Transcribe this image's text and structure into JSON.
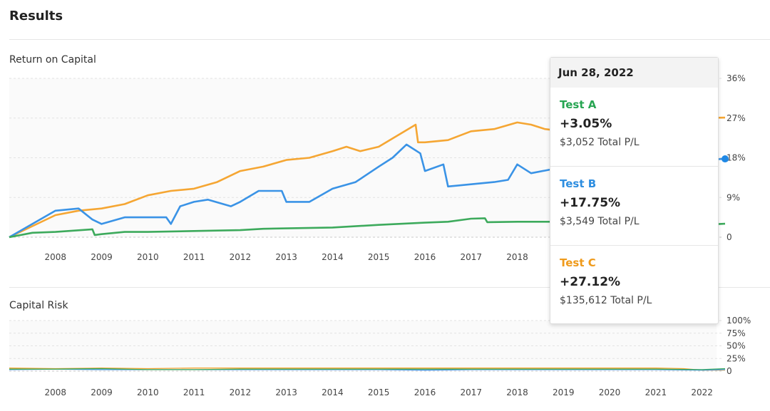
{
  "header": {
    "title": "Results"
  },
  "sections": {
    "roc": "Return on Capital",
    "risk": "Capital Risk"
  },
  "colors": {
    "Test A": "#3daa5c",
    "Test B": "#3a93e6",
    "Test C": "#f5a633"
  },
  "tooltip": {
    "date": "Jun 28, 2022",
    "items": [
      {
        "name": "Test A",
        "pct": "+3.05%",
        "pl": "$3,052 Total P/L",
        "color": "#27a552"
      },
      {
        "name": "Test B",
        "pct": "+17.75%",
        "pl": "$3,549 Total P/L",
        "color": "#2e8ee0"
      },
      {
        "name": "Test C",
        "pct": "+27.12%",
        "pl": "$135,612 Total P/L",
        "color": "#ef9a1a"
      }
    ]
  },
  "chart_data": [
    {
      "type": "line",
      "title": "Return on Capital",
      "xlim": [
        2007,
        2022.5
      ],
      "ylim": [
        0,
        36
      ],
      "yticks": [
        "0",
        "9%",
        "18%",
        "27%",
        "36%"
      ],
      "ytick_values": [
        0,
        9,
        18,
        27,
        36
      ],
      "xticks": [
        "2008",
        "2009",
        "2010",
        "2011",
        "2012",
        "2013",
        "2014",
        "2015",
        "2016",
        "2017",
        "2018",
        "2019",
        "2020",
        "2021",
        "2022"
      ],
      "series": [
        {
          "name": "Test C",
          "x": [
            2007,
            2007.5,
            2008,
            2008.5,
            2009,
            2009.5,
            2010,
            2010.5,
            2011,
            2011.5,
            2012,
            2012.5,
            2013,
            2013.5,
            2014,
            2014.3,
            2014.6,
            2015,
            2015.4,
            2015.8,
            2015.85,
            2016,
            2016.5,
            2017,
            2017.5,
            2018,
            2018.3,
            2018.6,
            2019,
            2019.5,
            2020,
            2020.5,
            2021,
            2021.5,
            2022,
            2022.5
          ],
          "y": [
            0,
            2.5,
            5,
            6,
            6.5,
            7.5,
            9.5,
            10.5,
            11,
            12.5,
            15,
            16,
            17.5,
            18,
            19.5,
            20.5,
            19.5,
            20.5,
            23,
            25.5,
            21.5,
            21.5,
            22,
            24,
            24.5,
            26,
            25.5,
            24.5,
            24,
            24.5,
            25,
            25.5,
            26,
            26.5,
            27,
            27.1
          ]
        },
        {
          "name": "Test B",
          "x": [
            2007,
            2007.5,
            2008,
            2008.5,
            2008.8,
            2009,
            2009.5,
            2010,
            2010.4,
            2010.5,
            2010.7,
            2011,
            2011.3,
            2011.8,
            2012,
            2012.4,
            2012.9,
            2013,
            2013.5,
            2014,
            2014.5,
            2015,
            2015.3,
            2015.6,
            2015.9,
            2016,
            2016.4,
            2016.5,
            2017,
            2017.5,
            2017.8,
            2018,
            2018.3,
            2018.8,
            2019,
            2019.5,
            2020,
            2020.5,
            2021,
            2021.5,
            2022,
            2022.5
          ],
          "y": [
            0,
            3,
            6,
            6.5,
            4,
            3,
            4.5,
            4.5,
            4.5,
            3,
            7,
            8,
            8.5,
            7,
            8,
            10.5,
            10.5,
            8,
            8,
            11,
            12.5,
            16,
            18,
            21,
            19,
            15,
            16.5,
            11.5,
            12,
            12.5,
            13,
            16.5,
            14.5,
            15.5,
            15.5,
            16,
            16.5,
            16.5,
            17,
            17.5,
            17.5,
            17.75
          ]
        },
        {
          "name": "Test A",
          "x": [
            2007,
            2007.5,
            2008,
            2008.8,
            2008.85,
            2009,
            2009.5,
            2010,
            2011,
            2012,
            2012.5,
            2013,
            2014,
            2015,
            2016,
            2016.5,
            2017,
            2017.3,
            2017.35,
            2018,
            2019,
            2020,
            2021,
            2022,
            2022.5
          ],
          "y": [
            0,
            1,
            1.2,
            1.8,
            0.5,
            0.7,
            1.2,
            1.2,
            1.4,
            1.6,
            1.9,
            2,
            2.2,
            2.8,
            3.3,
            3.5,
            4.2,
            4.3,
            3.4,
            3.5,
            3.5,
            3.3,
            3.2,
            2.8,
            3.05
          ]
        }
      ],
      "highlight": {
        "series": "Test B",
        "x": 2022.5,
        "y": 17.75
      }
    },
    {
      "type": "line",
      "title": "Capital Risk",
      "xlim": [
        2007,
        2022.5
      ],
      "ylim": [
        0,
        100
      ],
      "yticks": [
        "0",
        "25%",
        "50%",
        "75%",
        "100%"
      ],
      "ytick_values": [
        0,
        25,
        50,
        75,
        100
      ],
      "xticks": [
        "2008",
        "2009",
        "2010",
        "2011",
        "2012",
        "2013",
        "2014",
        "2015",
        "2016",
        "2017",
        "2018",
        "2019",
        "2020",
        "2021",
        "2022"
      ],
      "series": [
        {
          "name": "Test C",
          "x": [
            2007,
            2008,
            2009,
            2010,
            2011,
            2012,
            2013,
            2014,
            2015,
            2016,
            2017,
            2018,
            2019,
            2020,
            2021,
            2021.6,
            2022,
            2022.5
          ],
          "y": [
            6,
            5,
            6,
            5,
            6,
            6,
            6,
            6,
            6,
            6,
            6,
            6,
            6,
            6,
            6,
            5,
            2,
            2
          ]
        },
        {
          "name": "Test B",
          "x": [
            2007,
            2008,
            2009,
            2010,
            2011,
            2012,
            2013,
            2014,
            2015,
            2016,
            2017,
            2018,
            2019,
            2020,
            2021,
            2022,
            2022.5
          ],
          "y": [
            3,
            4,
            3,
            3,
            3,
            3,
            3,
            3,
            3,
            2,
            3,
            3,
            3,
            3,
            3,
            2,
            3
          ]
        },
        {
          "name": "Test A",
          "x": [
            2007,
            2008,
            2009,
            2010,
            2011,
            2012,
            2013,
            2014,
            2015,
            2016,
            2017,
            2018,
            2019,
            2020,
            2021,
            2022,
            2022.5
          ],
          "y": [
            4,
            4,
            5,
            3,
            3,
            4,
            4,
            4,
            4,
            4,
            4,
            4,
            4,
            4,
            4,
            3,
            5
          ]
        }
      ]
    }
  ]
}
